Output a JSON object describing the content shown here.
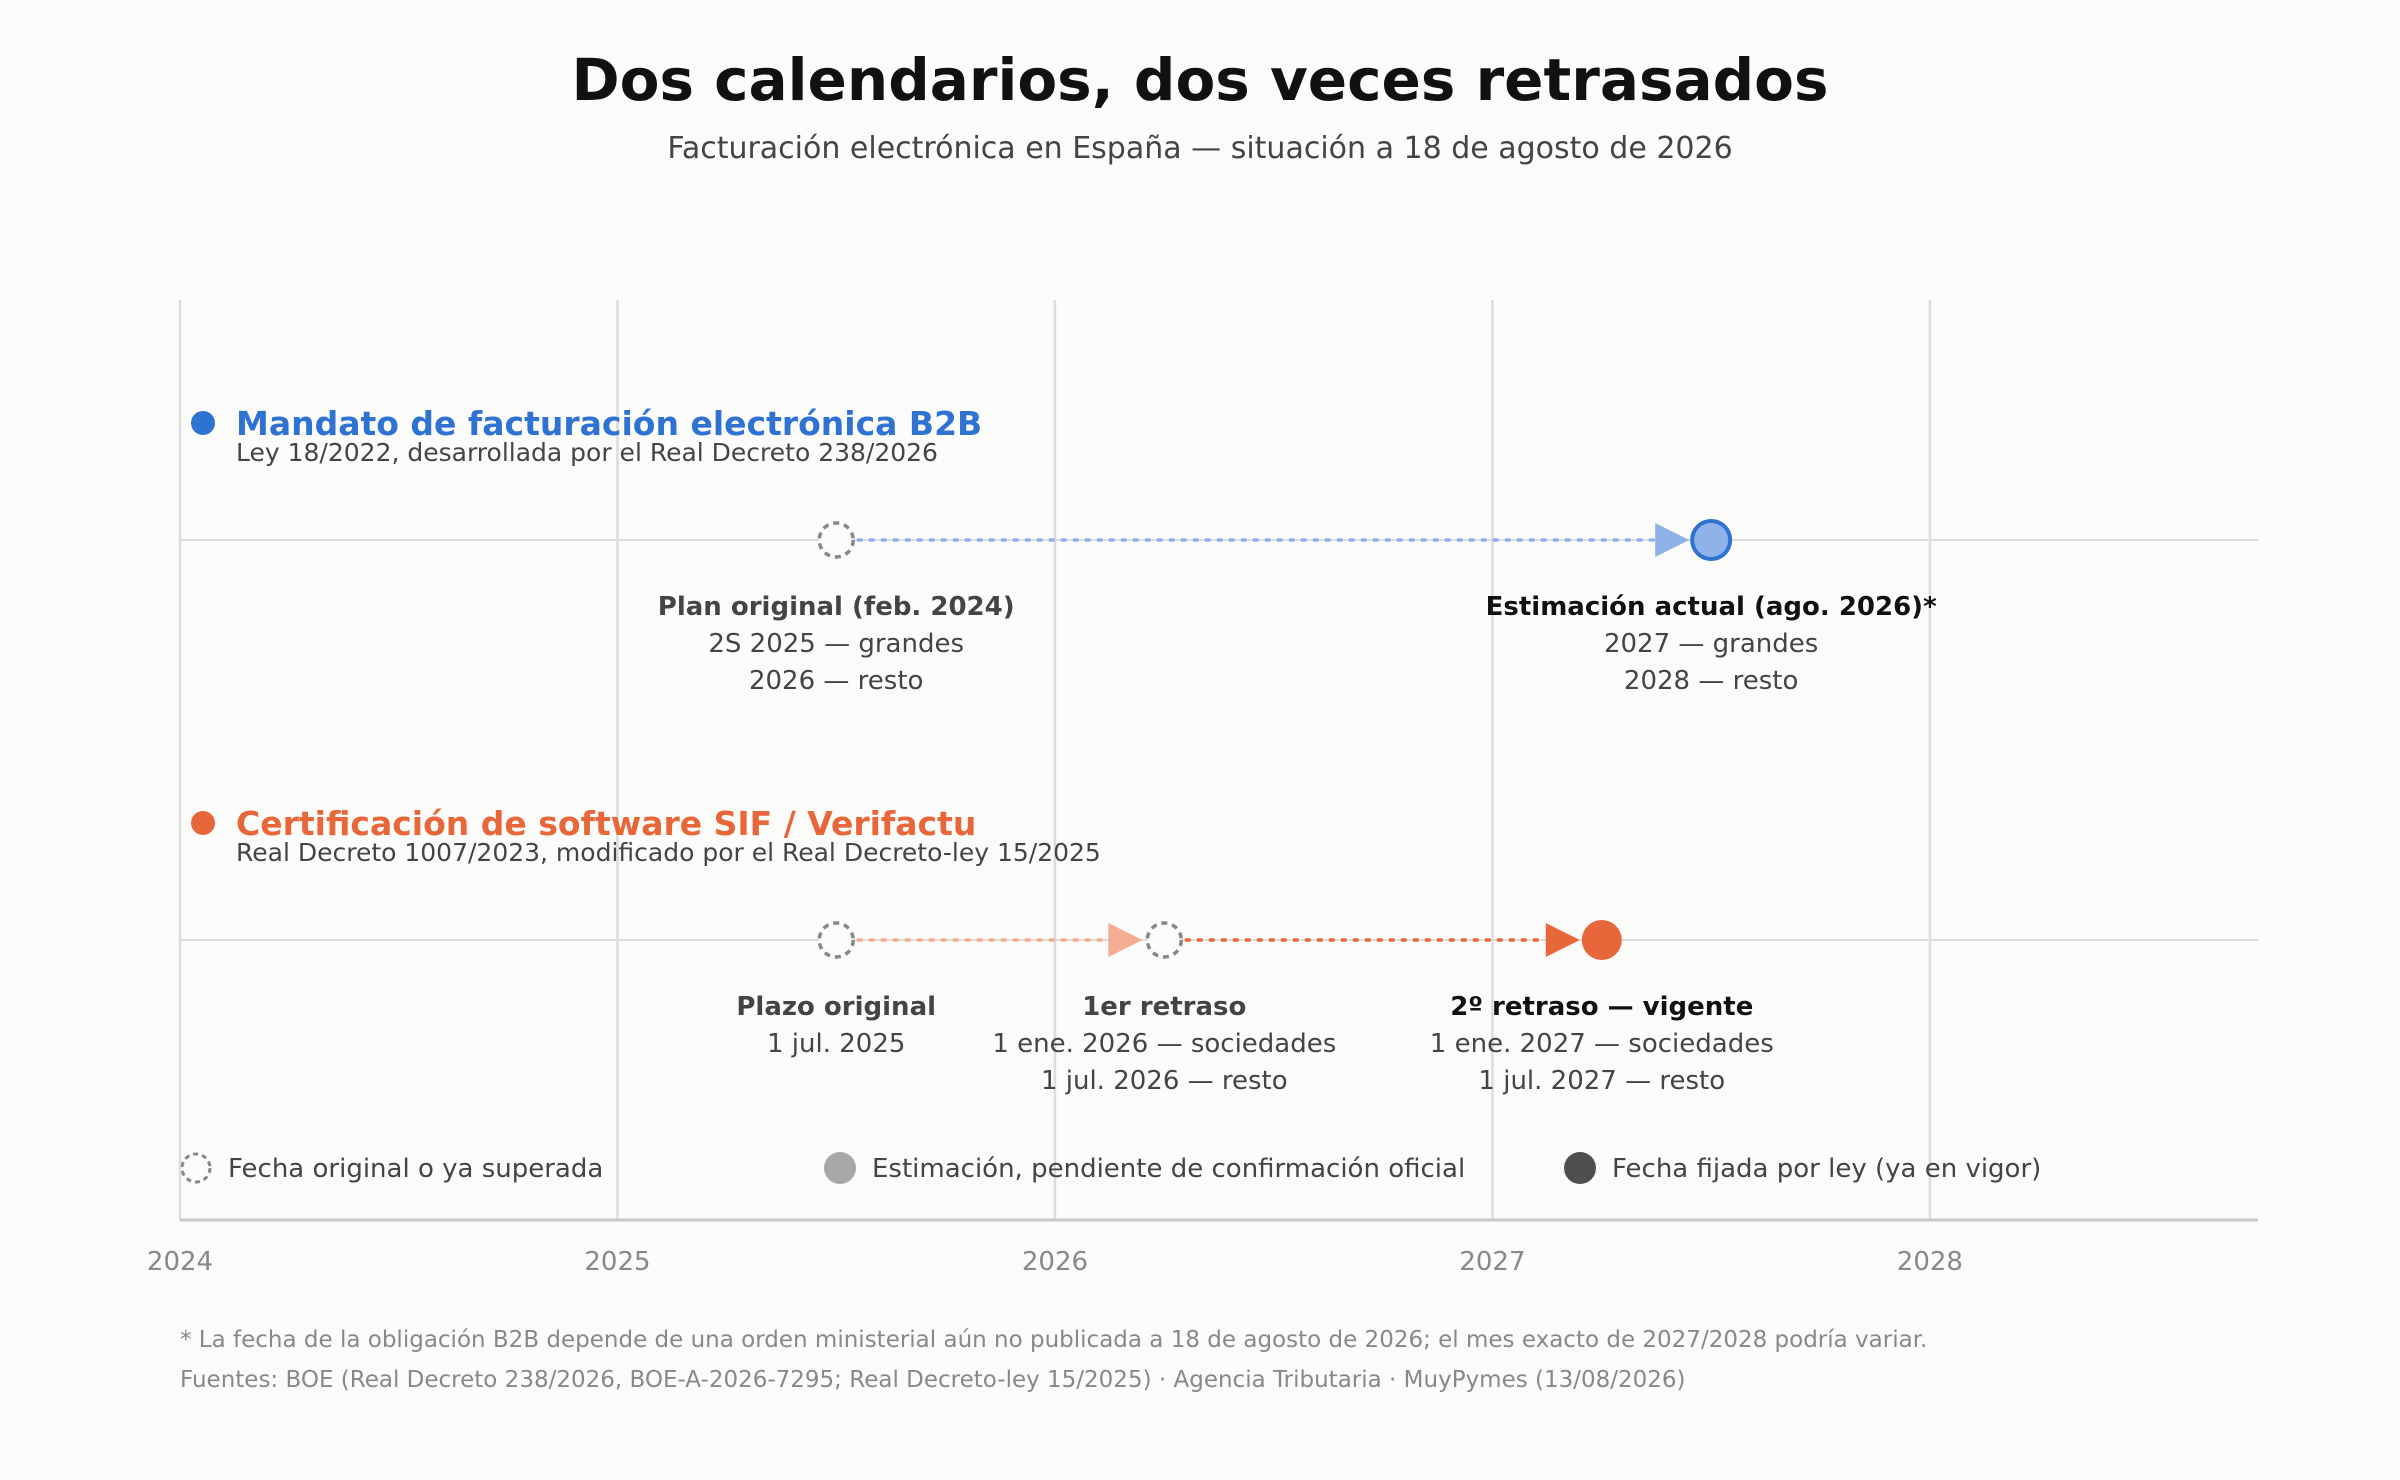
{
  "title": "Dos calendarios, dos veces retrasados",
  "subtitle": "Facturación electrónica en España — situación a 18 de agosto de 2026",
  "colors": {
    "background": "#fbfbf9",
    "grid": "#dcdcdc",
    "b2b": "#2e72d2",
    "b2b_light": "#8fb3e8",
    "sif": "#e8673a",
    "sif_light": "#f3ad92",
    "hollow": "#888888",
    "legend_estimate": "#a8a8a8",
    "legend_fixed": "#4f4f4f",
    "label_dark": "#111111",
    "label_mid": "#444444",
    "axis_text": "#888888"
  },
  "chart_data": {
    "type": "timeline",
    "x_axis": {
      "range": [
        2024,
        2028.75
      ],
      "ticks": [
        2024,
        2025,
        2026,
        2027,
        2028
      ],
      "tick_labels": [
        "2024",
        "2025",
        "2026",
        "2027",
        "2028"
      ],
      "grid": true
    },
    "tracks": [
      {
        "id": "b2b",
        "title": "Mandato de facturación electrónica B2B",
        "subtitle": "Ley 18/2022, desarrollada por el Real Decreto 238/2026",
        "color": "#2e72d2",
        "light_color": "#8fb3e8",
        "milestones": [
          {
            "date": 2025.5,
            "style": "original",
            "title": "Plan original (feb. 2024)",
            "lines": [
              "2S 2025 — grandes",
              "2026 — resto"
            ]
          },
          {
            "date": 2027.5,
            "style": "estimate",
            "title": "Estimación actual (ago. 2026)*",
            "lines": [
              "2027 — grandes",
              "2028 — resto"
            ]
          }
        ],
        "transitions": [
          {
            "from": 2025.5,
            "to": 2027.5,
            "style": "light"
          }
        ]
      },
      {
        "id": "sif",
        "title": "Certificación de software SIF / Verifactu",
        "subtitle": "Real Decreto 1007/2023, modificado por el Real Decreto-ley 15/2025",
        "color": "#e8673a",
        "light_color": "#f3ad92",
        "milestones": [
          {
            "date": 2025.5,
            "style": "original",
            "title": "Plazo original",
            "lines": [
              "1 jul. 2025"
            ]
          },
          {
            "date": 2026.25,
            "style": "original",
            "title": "1er retraso",
            "lines": [
              "1 ene. 2026 — sociedades",
              "1 jul. 2026 — resto"
            ]
          },
          {
            "date": 2027.25,
            "style": "fixed",
            "title": "2º retraso — vigente",
            "lines": [
              "1 ene. 2027 — sociedades",
              "1 jul. 2027 — resto"
            ]
          }
        ],
        "transitions": [
          {
            "from": 2025.5,
            "to": 2026.25,
            "style": "light"
          },
          {
            "from": 2026.25,
            "to": 2027.25,
            "style": "strong"
          }
        ]
      }
    ],
    "legend": [
      {
        "style": "original",
        "label": "Fecha original o ya superada"
      },
      {
        "style": "estimate",
        "label": "Estimación, pendiente de confirmación oficial"
      },
      {
        "style": "fixed",
        "label": "Fecha fijada por ley (ya en vigor)"
      }
    ]
  },
  "footnote": "* La fecha de la obligación B2B depende de una orden ministerial aún no publicada a 18 de agosto de 2026; el mes exacto de 2027/2028 podría variar.",
  "sources": "Fuentes: BOE (Real Decreto 238/2026, BOE-A-2026-7295; Real Decreto-ley 15/2025) · Agencia Tributaria · MuyPymes (13/08/2026)"
}
